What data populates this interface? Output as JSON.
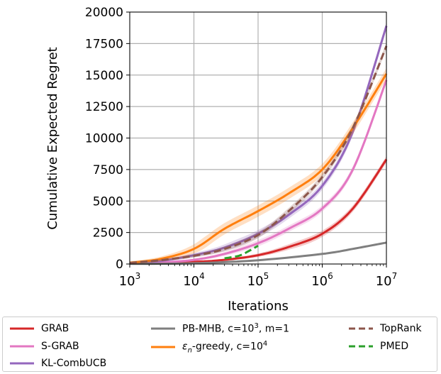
{
  "chart_data": {
    "type": "line",
    "xlabel": "Iterations",
    "ylabel": "Cumulative Expected Regret",
    "x_scale": "log",
    "xlim": [
      1000,
      10000000
    ],
    "ylim": [
      0,
      20000
    ],
    "x_ticks": [
      {
        "value": 1000,
        "base": "10",
        "exp": "3"
      },
      {
        "value": 10000,
        "base": "10",
        "exp": "4"
      },
      {
        "value": 100000,
        "base": "10",
        "exp": "5"
      },
      {
        "value": 1000000,
        "base": "10",
        "exp": "6"
      },
      {
        "value": 10000000,
        "base": "10",
        "exp": "7"
      }
    ],
    "y_ticks": [
      0,
      2500,
      5000,
      7500,
      10000,
      12500,
      15000,
      17500,
      20000
    ],
    "grid": true,
    "legend_placement": "below",
    "series": [
      {
        "name": "GRAB",
        "color": "#d62728",
        "dash": "solid",
        "band": 250,
        "points": [
          [
            1000,
            30
          ],
          [
            3000,
            80
          ],
          [
            10000,
            170
          ],
          [
            30000,
            330
          ],
          [
            100000,
            700
          ],
          [
            300000,
            1350
          ],
          [
            1000000,
            2400
          ],
          [
            3000000,
            4400
          ],
          [
            10000000,
            8300
          ]
        ]
      },
      {
        "name": "S-GRAB",
        "color": "#e377c2",
        "dash": "solid",
        "band": 250,
        "points": [
          [
            1000,
            40
          ],
          [
            3000,
            120
          ],
          [
            10000,
            330
          ],
          [
            30000,
            800
          ],
          [
            100000,
            1650
          ],
          [
            300000,
            2800
          ],
          [
            1000000,
            4400
          ],
          [
            3000000,
            7500
          ],
          [
            10000000,
            14600
          ]
        ]
      },
      {
        "name": "KL-CombUCB",
        "color": "#9467bd",
        "dash": "solid",
        "band": 300,
        "points": [
          [
            1000,
            80
          ],
          [
            3000,
            250
          ],
          [
            10000,
            700
          ],
          [
            30000,
            1300
          ],
          [
            100000,
            2400
          ],
          [
            300000,
            3900
          ],
          [
            1000000,
            6200
          ],
          [
            3000000,
            10500
          ],
          [
            10000000,
            18900
          ]
        ]
      },
      {
        "name": "PB-MHB, c=10³, m=1",
        "color": "#7f7f7f",
        "dash": "solid",
        "band": 0,
        "points": [
          [
            1000,
            10
          ],
          [
            10000,
            60
          ],
          [
            100000,
            300
          ],
          [
            1000000,
            800
          ],
          [
            3000000,
            1200
          ],
          [
            10000000,
            1700
          ]
        ]
      },
      {
        "name": "εn-greedy, c=10⁴",
        "color": "#ff7f0e",
        "dash": "solid",
        "band": 450,
        "points": [
          [
            1000,
            100
          ],
          [
            3000,
            400
          ],
          [
            10000,
            1200
          ],
          [
            30000,
            2800
          ],
          [
            100000,
            4200
          ],
          [
            300000,
            5600
          ],
          [
            1000000,
            7500
          ],
          [
            3000000,
            10800
          ],
          [
            10000000,
            15100
          ]
        ]
      },
      {
        "name": "TopRank",
        "color": "#8c564b",
        "dash": "dashed",
        "band": 250,
        "points": [
          [
            1000,
            90
          ],
          [
            3000,
            300
          ],
          [
            10000,
            650
          ],
          [
            30000,
            1200
          ],
          [
            100000,
            2300
          ],
          [
            300000,
            4200
          ],
          [
            1000000,
            6900
          ],
          [
            3000000,
            10800
          ],
          [
            10000000,
            17300
          ]
        ]
      },
      {
        "name": "PMED",
        "color": "#2ca02c",
        "dash": "dashed",
        "band": 0,
        "points": [
          [
            30000,
            450
          ],
          [
            50000,
            650
          ],
          [
            70000,
            1000
          ],
          [
            100000,
            1450
          ]
        ]
      }
    ],
    "legend": [
      {
        "key": "grab",
        "label": "GRAB"
      },
      {
        "key": "sgrab",
        "label": "S-GRAB"
      },
      {
        "key": "klcomb",
        "label": "KL-CombUCB"
      },
      {
        "key": "pbmhb",
        "label_prefix": "PB-MHB, c=10",
        "label_sup": "3",
        "label_suffix": ", m=1"
      },
      {
        "key": "egreedy",
        "label_sym": "ε",
        "label_sub": "n",
        "label_mid": "-greedy, c=10",
        "label_sup": "4"
      },
      {
        "key": "toprank",
        "label": "TopRank"
      },
      {
        "key": "pmed",
        "label": "PMED"
      }
    ]
  }
}
